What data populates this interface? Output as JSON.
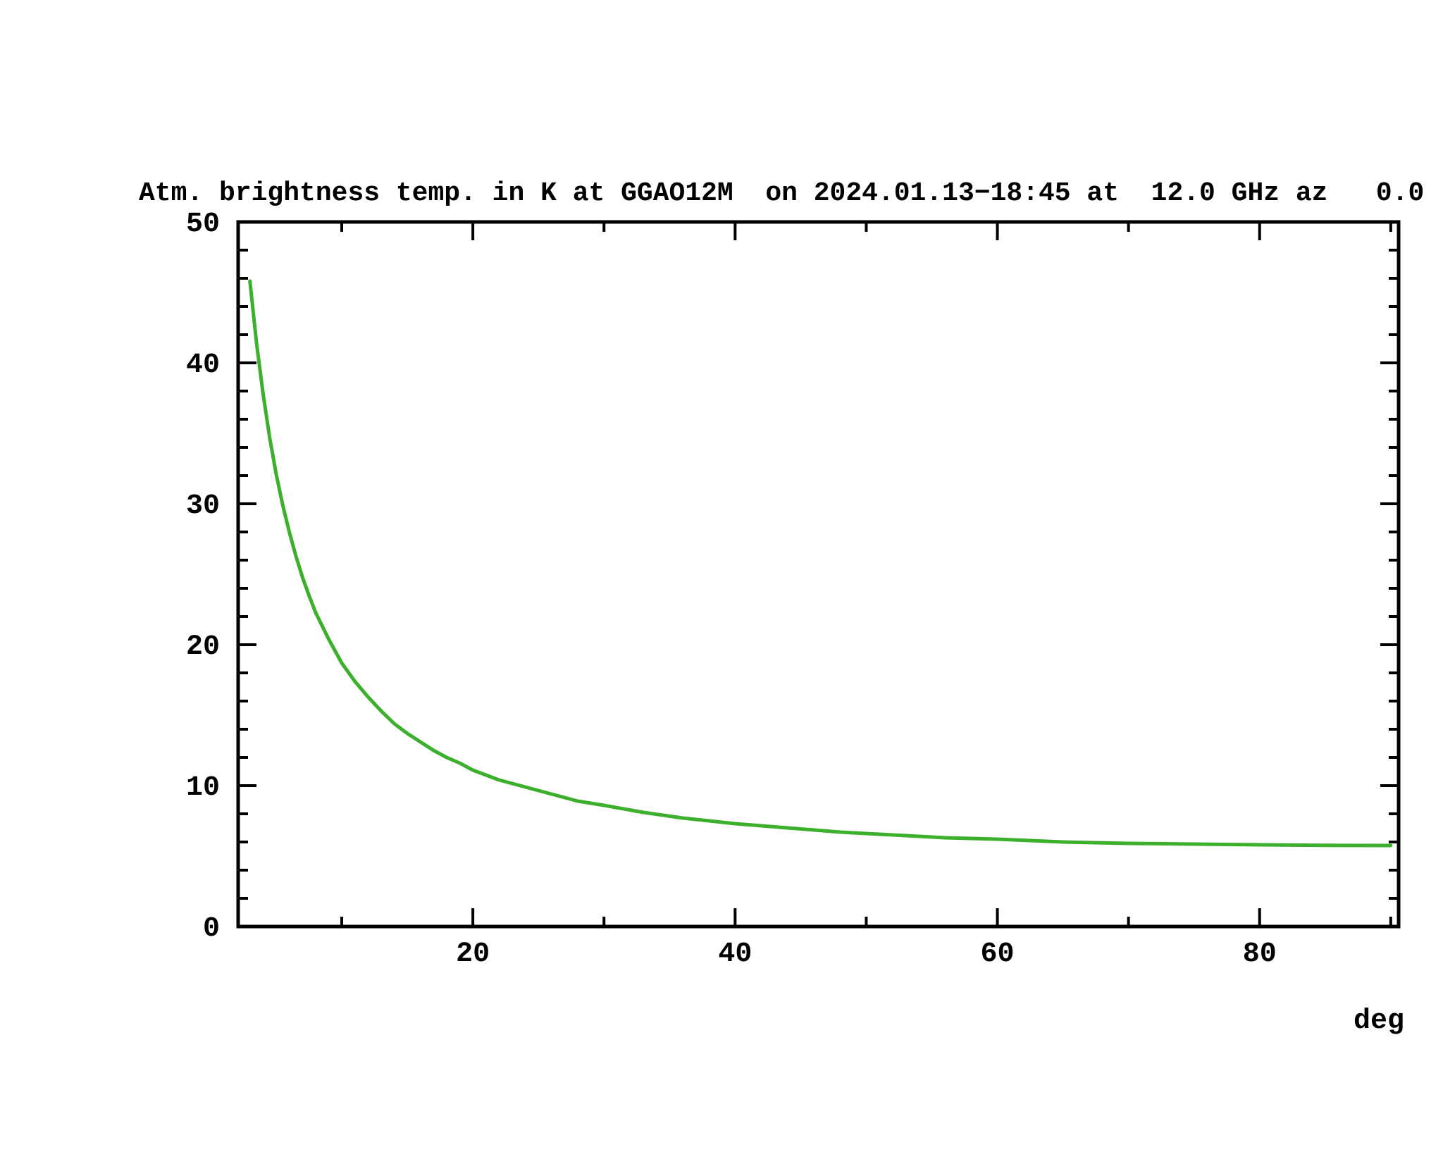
{
  "page": {
    "background": "#ffffff",
    "text_color": "#000000"
  },
  "chart_data": {
    "type": "line",
    "title": "Atm. brightness temp. in K at GGAO12M  on 2024.01.13−18:45 at  12.0 GHz az   0.0",
    "xlabel": "deg",
    "ylabel": "",
    "xlim": [
      2.1,
      90.6
    ],
    "ylim": [
      0,
      50
    ],
    "x_ticks_major": [
      20,
      40,
      60,
      80
    ],
    "x_ticks_minor": [
      10,
      30,
      50,
      70,
      90
    ],
    "y_ticks_major": [
      0,
      10,
      20,
      30,
      40,
      50
    ],
    "y_minor_step": 2,
    "grid": false,
    "legend": "none",
    "frame": "box-with-inward-ticks",
    "line_color": "#3cb02c",
    "axis_color": "#000000",
    "series": [
      {
        "name": "atm-brightness-temperature-K",
        "x": [
          3,
          3.5,
          4,
          4.5,
          5,
          5.5,
          6,
          6.5,
          7,
          7.5,
          8,
          9,
          10,
          11,
          12,
          13,
          14,
          15,
          16,
          17,
          18,
          19,
          20,
          22,
          24,
          26,
          28,
          30,
          33,
          36,
          40,
          44,
          48,
          52,
          56,
          60,
          65,
          70,
          75,
          80,
          85,
          90
        ],
        "y": [
          45.8,
          41.4,
          37.8,
          34.7,
          32.1,
          29.9,
          28.0,
          26.3,
          24.8,
          23.5,
          22.3,
          20.4,
          18.7,
          17.4,
          16.3,
          15.3,
          14.4,
          13.7,
          13.1,
          12.5,
          12.0,
          11.6,
          11.1,
          10.4,
          9.9,
          9.4,
          8.9,
          8.6,
          8.1,
          7.7,
          7.3,
          7.0,
          6.7,
          6.5,
          6.3,
          6.2,
          6.0,
          5.9,
          5.85,
          5.8,
          5.76,
          5.75
        ]
      }
    ]
  }
}
